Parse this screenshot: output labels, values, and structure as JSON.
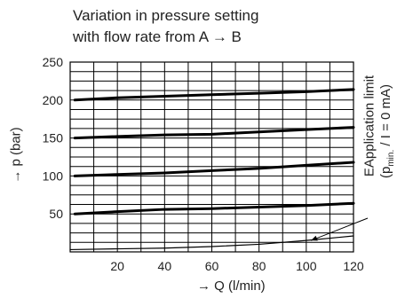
{
  "chart_data": {
    "type": "line",
    "title_lines": [
      "Variation in pressure setting",
      "with flow rate from A → B"
    ],
    "xlabel": "→ Q (l/min)",
    "ylabel": "→ p (bar)",
    "xlim": [
      0,
      120
    ],
    "ylim": [
      0,
      250
    ],
    "xticks": [
      20,
      40,
      60,
      80,
      100,
      120
    ],
    "yticks": [
      50,
      100,
      150,
      200,
      250
    ],
    "grid": true,
    "series": [
      {
        "x": [
          2,
          20,
          40,
          60,
          80,
          100,
          120
        ],
        "y": [
          200,
          203,
          205,
          207,
          209,
          211,
          214
        ]
      },
      {
        "x": [
          2,
          20,
          40,
          60,
          80,
          100,
          120
        ],
        "y": [
          150,
          152,
          154,
          155,
          158,
          161,
          164
        ]
      },
      {
        "x": [
          2,
          20,
          40,
          60,
          80,
          100,
          120
        ],
        "y": [
          100,
          102,
          104,
          107,
          110,
          114,
          118
        ]
      },
      {
        "x": [
          2,
          20,
          40,
          60,
          80,
          100,
          120
        ],
        "y": [
          50,
          53,
          56,
          57,
          59,
          61,
          64
        ]
      },
      {
        "x": [
          0,
          20,
          40,
          60,
          80,
          100,
          120
        ],
        "y": [
          3,
          4,
          5,
          7,
          10,
          15,
          21
        ],
        "thin": true
      }
    ],
    "annotation": {
      "line1": "EApplication limit",
      "line2_prefix": "(p",
      "line2_sub": "min.",
      "line2_suffix": " / I = 0 mA)",
      "arrow_to": [
        102,
        15
      ]
    }
  }
}
